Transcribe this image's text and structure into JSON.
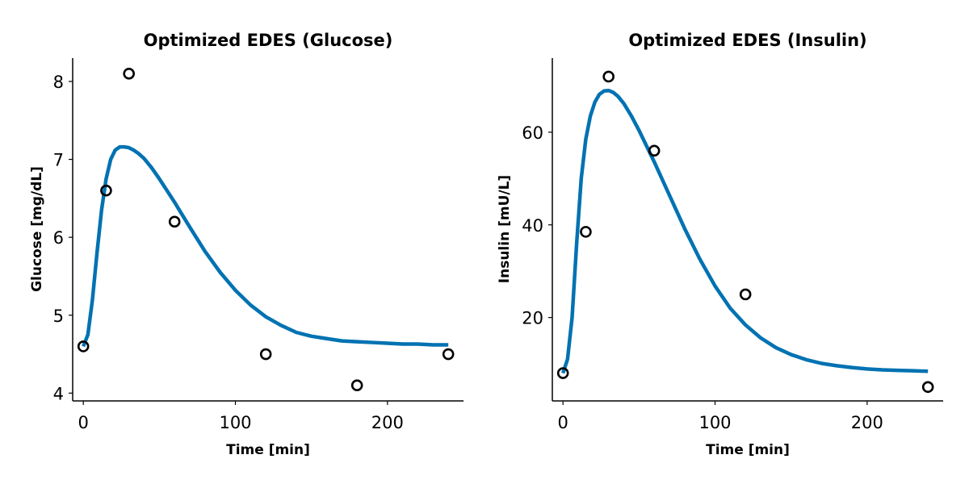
{
  "chart_data": [
    {
      "type": "line",
      "title": "Optimized EDES (Glucose)",
      "xlabel": "Time [min]",
      "ylabel": "Glucose [mg/dL]",
      "xlim": [
        -7,
        250
      ],
      "ylim": [
        3.9,
        8.3
      ],
      "xticks": [
        0,
        100,
        200
      ],
      "yticks": [
        4,
        5,
        6,
        7,
        8
      ],
      "grid": false,
      "legend": "none",
      "series": [
        {
          "kind": "line",
          "color": "#0072B2",
          "x": [
            0,
            3,
            6,
            9,
            12,
            15,
            18,
            21,
            24,
            27,
            30,
            33,
            36,
            40,
            45,
            50,
            55,
            60,
            65,
            70,
            80,
            90,
            100,
            110,
            120,
            130,
            140,
            150,
            160,
            170,
            180,
            190,
            200,
            210,
            220,
            230,
            240
          ],
          "y": [
            4.6,
            4.75,
            5.2,
            5.8,
            6.35,
            6.75,
            7.0,
            7.12,
            7.16,
            7.16,
            7.15,
            7.12,
            7.08,
            7.01,
            6.89,
            6.75,
            6.6,
            6.45,
            6.29,
            6.13,
            5.82,
            5.55,
            5.32,
            5.13,
            4.98,
            4.87,
            4.78,
            4.73,
            4.7,
            4.67,
            4.66,
            4.65,
            4.64,
            4.63,
            4.63,
            4.62,
            4.62
          ]
        },
        {
          "kind": "scatter",
          "marker": "open-circle",
          "color": "#000000",
          "x": [
            0,
            15,
            30,
            60,
            120,
            180,
            240
          ],
          "y": [
            4.6,
            6.6,
            8.1,
            6.2,
            4.5,
            4.1,
            4.5
          ]
        }
      ]
    },
    {
      "type": "line",
      "title": "Optimized EDES (Insulin)",
      "xlabel": "Time [min]",
      "ylabel": "Insulin [mU/L]",
      "xlim": [
        -7,
        250
      ],
      "ylim": [
        2,
        76
      ],
      "xticks": [
        0,
        100,
        200
      ],
      "yticks": [
        20,
        40,
        60
      ],
      "grid": false,
      "legend": "none",
      "series": [
        {
          "kind": "line",
          "color": "#0072B2",
          "x": [
            0,
            3,
            6,
            9,
            12,
            15,
            18,
            21,
            24,
            27,
            30,
            33,
            36,
            40,
            45,
            50,
            60,
            70,
            80,
            90,
            100,
            110,
            120,
            130,
            140,
            150,
            160,
            170,
            180,
            190,
            200,
            210,
            220,
            230,
            240
          ],
          "y": [
            8.0,
            11.0,
            20.0,
            36.0,
            50.0,
            58.5,
            63.5,
            66.5,
            68.2,
            68.9,
            69.0,
            68.6,
            67.8,
            66.2,
            63.5,
            60.4,
            53.6,
            46.4,
            39.2,
            32.6,
            26.8,
            22.0,
            18.4,
            15.6,
            13.5,
            12.0,
            10.9,
            10.1,
            9.6,
            9.2,
            8.9,
            8.7,
            8.6,
            8.5,
            8.4
          ]
        },
        {
          "kind": "scatter",
          "marker": "open-circle",
          "color": "#000000",
          "x": [
            0,
            15,
            30,
            60,
            120,
            240
          ],
          "y": [
            8,
            38.5,
            72,
            56,
            25,
            5
          ]
        }
      ]
    }
  ]
}
